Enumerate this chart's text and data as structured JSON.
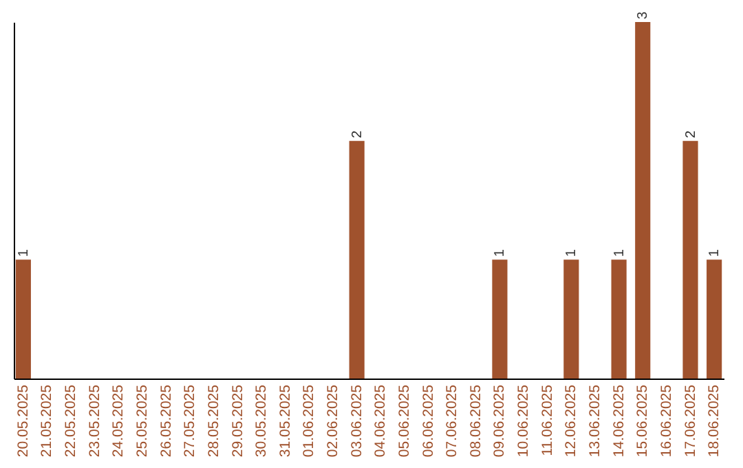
{
  "chart_data": {
    "type": "bar",
    "categories": [
      "20.05.2025",
      "21.05.2025",
      "22.05.2025",
      "23.05.2025",
      "24.05.2025",
      "25.05.2025",
      "26.05.2025",
      "27.05.2025",
      "28.05.2025",
      "29.05.2025",
      "30.05.2025",
      "31.05.2025",
      "01.06.2025",
      "02.06.2025",
      "03.06.2025",
      "04.06.2025",
      "05.06.2025",
      "06.06.2025",
      "07.06.2025",
      "08.06.2025",
      "09.06.2025",
      "10.06.2025",
      "11.06.2025",
      "12.06.2025",
      "13.06.2025",
      "14.06.2025",
      "15.06.2025",
      "16.06.2025",
      "17.06.2025",
      "18.06.2025"
    ],
    "values": [
      1,
      0,
      0,
      0,
      0,
      0,
      0,
      0,
      0,
      0,
      0,
      0,
      0,
      0,
      2,
      0,
      0,
      0,
      0,
      0,
      1,
      0,
      0,
      1,
      0,
      1,
      3,
      0,
      2,
      1
    ],
    "value_labels": [
      "1",
      null,
      null,
      null,
      null,
      null,
      null,
      null,
      null,
      null,
      null,
      null,
      null,
      null,
      "2",
      null,
      null,
      null,
      null,
      null,
      "1",
      null,
      null,
      "1",
      null,
      "1",
      "3",
      null,
      "2",
      "1"
    ],
    "color": "#a0522d",
    "ylim": [
      0,
      3
    ],
    "tick_labels": "x",
    "grid": false
  }
}
